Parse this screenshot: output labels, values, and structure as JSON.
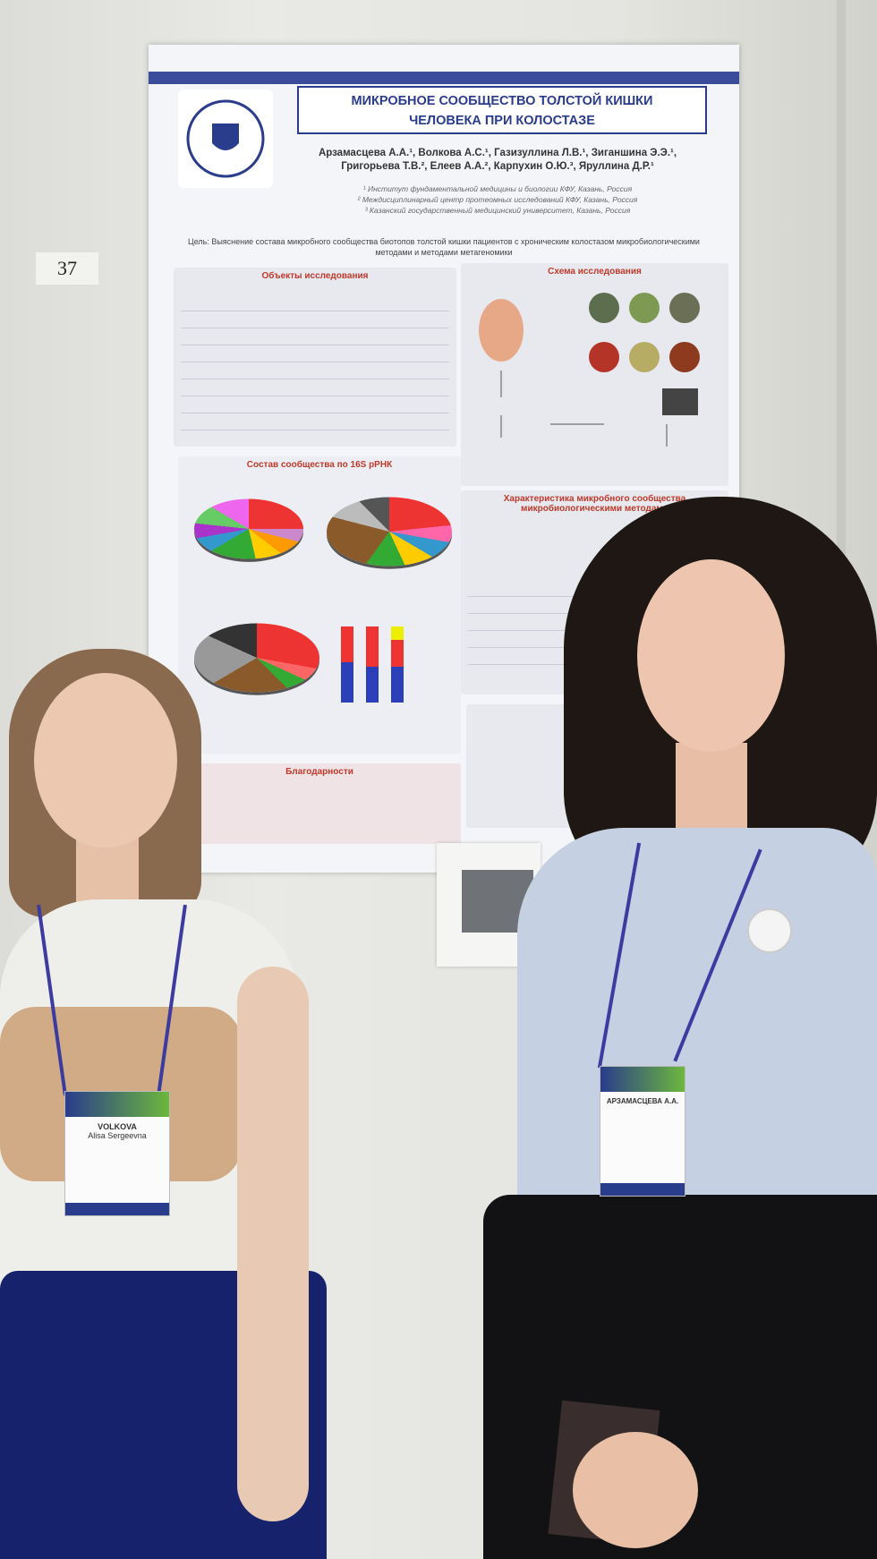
{
  "board_number": "37",
  "poster": {
    "title": [
      "МИКРОБНОЕ СООБЩЕСТВО ТОЛСТОЙ КИШКИ",
      "ЧЕЛОВЕКА ПРИ КОЛОСТАЗЕ"
    ],
    "authors": [
      "Арзамасцева А.А.¹, Волкова А.С.¹, Газизуллина Л.В.¹, Зиганшина Э.Э.¹,",
      "Григорьева Т.В.², Елеев А.А.², Карпухин О.Ю.³, Яруллина Д.Р.¹"
    ],
    "affiliations": [
      "¹ Институт фундаментальной медицины и биологии КФУ, Казань, Россия",
      "² Междисциплинарный центр протеомных исследований КФУ, Казань, Россия",
      "³ Казанский государственный медицинский университет, Казань, Россия"
    ],
    "goal": "Цель: Выяснение состава микробного сообщества биотопов толстой кишки пациентов с хроническим колостазом микробиологическими методами и методами метагеномики",
    "sections": [
      "Объекты исследования",
      "Схема исследования",
      "Состав сообщества по 16S рРНК",
      "Характеристика микробного сообщества микробиологическими методами",
      "Благодарности"
    ]
  },
  "badges": {
    "left": [
      "VOLKOVA",
      "Alisa Sergeevna"
    ],
    "right": [
      "АРЗАМАСЦЕВА А.А."
    ]
  }
}
